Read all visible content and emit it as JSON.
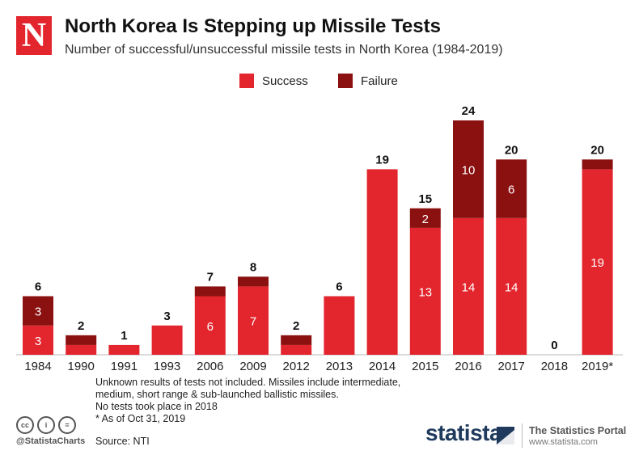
{
  "header": {
    "logo_letter": "N",
    "title": "North Korea Is Stepping up Missile Tests",
    "subtitle": "Number of successful/unsuccessful missile tests in North Korea (1984-2019)"
  },
  "colors": {
    "success": "#e3262e",
    "failure": "#8b1010",
    "axis": "#bbbbbb"
  },
  "chart_data": {
    "type": "bar",
    "stacked": true,
    "title": "North Korea Is Stepping up Missile Tests",
    "categories": [
      "1984",
      "1990",
      "1991",
      "1993",
      "2006",
      "2009",
      "2012",
      "2013",
      "2014",
      "2015",
      "2016",
      "2017",
      "2018",
      "2019*"
    ],
    "series": [
      {
        "name": "Success",
        "values": [
          3,
          1,
          1,
          3,
          6,
          7,
          1,
          6,
          19,
          13,
          14,
          14,
          0,
          19
        ]
      },
      {
        "name": "Failure",
        "values": [
          3,
          1,
          0,
          0,
          1,
          1,
          1,
          0,
          0,
          2,
          10,
          6,
          0,
          1
        ]
      }
    ],
    "totals": [
      6,
      2,
      1,
      3,
      7,
      8,
      2,
      6,
      19,
      15,
      24,
      20,
      0,
      20
    ],
    "segment_labels": {
      "success": [
        "3",
        "",
        "",
        "",
        "6",
        "7",
        "",
        "",
        "",
        "13",
        "14",
        "14",
        "",
        "19"
      ],
      "failure": [
        "3",
        "",
        "",
        "",
        "",
        "",
        "",
        "",
        "",
        "2",
        "10",
        "6",
        "",
        ""
      ]
    },
    "ylim": [
      0,
      24
    ],
    "grid": false,
    "legend": "top-center"
  },
  "legend": {
    "success_label": "Success",
    "failure_label": "Failure"
  },
  "notes": [
    "Unknown results of tests not included. Missiles include intermediate,",
    "medium, short range & sub-launched ballistic missiles.",
    "No tests took place in 2018",
    "* As of Oct 31, 2019"
  ],
  "source": "Source: NTI",
  "footer": {
    "handle": "@StatistaCharts",
    "brand": "statista",
    "portal": "The Statistics Portal",
    "url": "www.statista.com",
    "cc_icons": [
      "cc",
      "i",
      "="
    ]
  }
}
